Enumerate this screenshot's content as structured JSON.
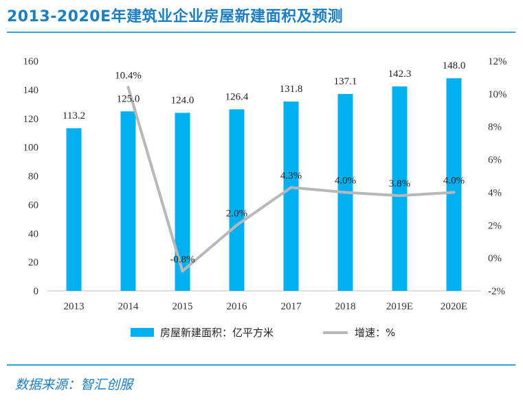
{
  "title": "2013-2020E年建筑业企业房屋新建面积及预测",
  "source": "数据来源：智汇创服",
  "colors": {
    "bar": "#00b0f0",
    "line": "#b8b8b8",
    "accent": "#1a7fc2"
  },
  "chart_data": {
    "type": "bar",
    "categories": [
      "2013",
      "2014",
      "2015",
      "2016",
      "2017",
      "2018",
      "2019E",
      "2020E"
    ],
    "series": [
      {
        "name": "房屋新建面积：亿平方米",
        "type": "bar",
        "axis": "left",
        "values": [
          113.2,
          125.0,
          124.0,
          126.4,
          131.8,
          137.1,
          142.3,
          148.0
        ],
        "labels": [
          "113.2",
          "125.0",
          "124.0",
          "126.4",
          "131.8",
          "137.1",
          "142.3",
          "148.0"
        ]
      },
      {
        "name": "增速：%",
        "type": "line",
        "axis": "right",
        "values": [
          null,
          10.4,
          -0.8,
          2.0,
          4.3,
          4.0,
          3.8,
          4.0
        ],
        "labels": [
          "",
          "10.4%",
          "-0.8%",
          "2.0%",
          "4.3%",
          "4.0%",
          "3.8%",
          "4.0%"
        ]
      }
    ],
    "y_left": {
      "min": 0,
      "max": 160,
      "ticks": [
        "0",
        "20",
        "40",
        "60",
        "80",
        "100",
        "120",
        "140",
        "160"
      ]
    },
    "y_right": {
      "min": -2,
      "max": 12,
      "ticks": [
        "-2%",
        "0%",
        "2%",
        "4%",
        "6%",
        "8%",
        "10%",
        "12%"
      ]
    },
    "grid": false,
    "legend": "bottom"
  }
}
